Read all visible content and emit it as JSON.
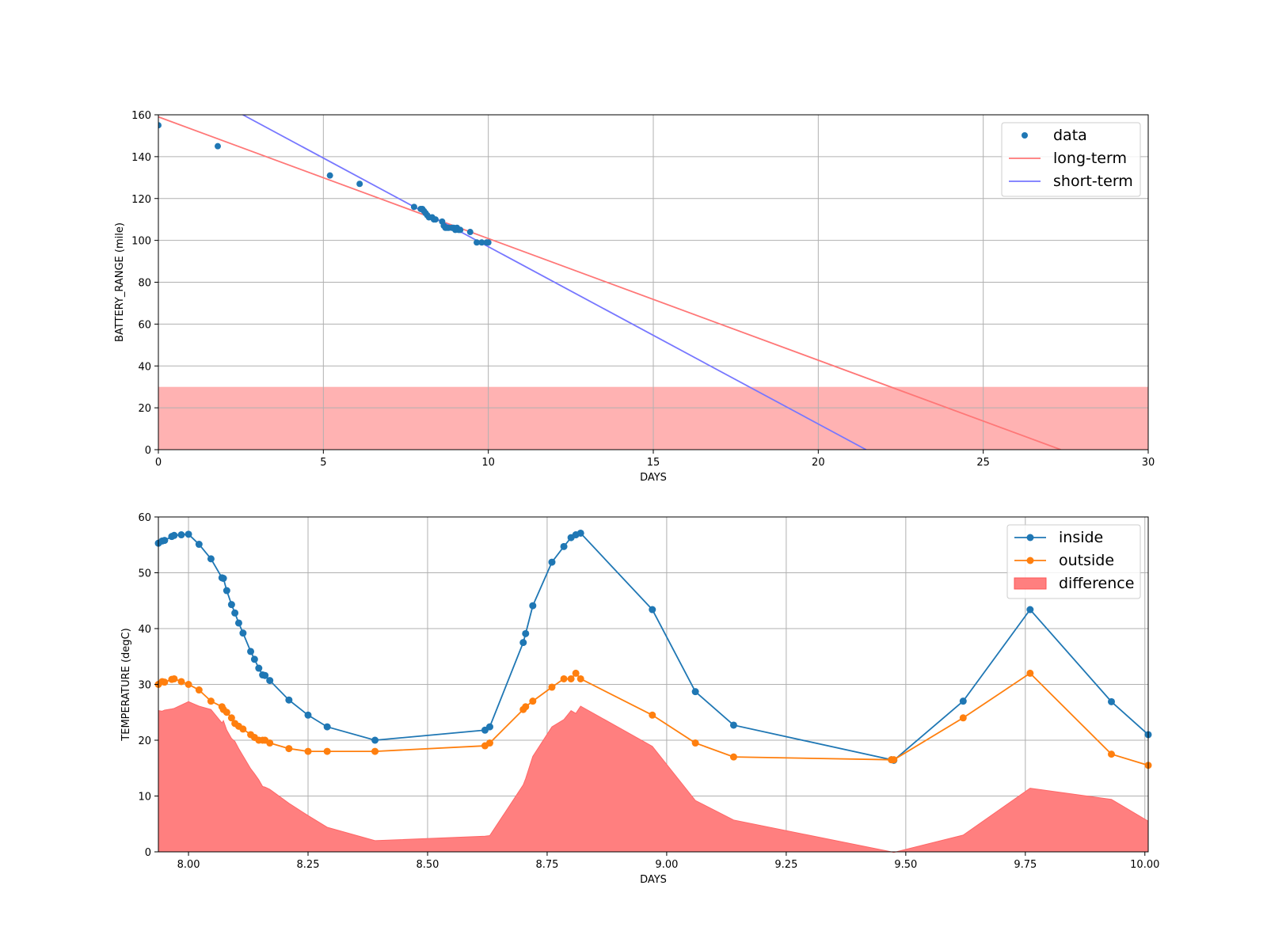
{
  "chart_data": [
    {
      "type": "scatter",
      "xlabel": "DAYS",
      "ylabel": "BATTERY_RANGE (mile)",
      "xlim": [
        0,
        30
      ],
      "ylim": [
        0,
        160
      ],
      "xticks": [
        0,
        5,
        10,
        15,
        20,
        25,
        30
      ],
      "yticks": [
        0,
        20,
        40,
        60,
        80,
        100,
        120,
        140,
        160
      ],
      "grid": true,
      "legend_position": "top-right",
      "shaded_band": {
        "y0": 0,
        "y1": 30,
        "color": "#ff0000",
        "opacity": 0.3
      },
      "colors": {
        "data": "#1f77b4",
        "long_term": "#ff7777",
        "short_term": "#7777ff"
      },
      "series": [
        {
          "name": "data",
          "kind": "points",
          "x": [
            0.0,
            1.8,
            5.2,
            6.1,
            7.75,
            7.95,
            8.0,
            8.05,
            8.1,
            8.15,
            8.2,
            8.3,
            8.35,
            8.4,
            8.6,
            8.65,
            8.7,
            8.75,
            8.8,
            8.9,
            8.95,
            9.0,
            9.05,
            9.1,
            9.15,
            9.45,
            9.65,
            9.8,
            9.95,
            10.0
          ],
          "y": [
            155,
            145,
            131,
            127,
            116,
            115,
            115,
            114,
            113,
            112,
            111,
            111,
            110,
            110,
            109,
            107,
            106,
            106,
            106,
            106,
            106,
            105,
            106,
            105,
            105,
            104,
            99,
            99,
            99,
            99
          ]
        },
        {
          "name": "long-term",
          "kind": "line",
          "x": [
            0,
            27.35
          ],
          "y": [
            159,
            0
          ]
        },
        {
          "name": "short-term",
          "kind": "line",
          "x": [
            2.56,
            21.45
          ],
          "y": [
            160,
            0
          ]
        }
      ]
    },
    {
      "type": "line",
      "xlabel": "DAYS",
      "ylabel": "TEMPERATURE (degC)",
      "xlim": [
        7.937,
        10.007
      ],
      "ylim": [
        0,
        60
      ],
      "xticks": [
        8.0,
        8.25,
        8.5,
        8.75,
        9.0,
        9.25,
        9.5,
        9.75,
        10.0
      ],
      "xtick_labels": [
        "8.00",
        "8.25",
        "8.50",
        "8.75",
        "9.00",
        "9.25",
        "9.50",
        "9.75",
        "10.00"
      ],
      "yticks": [
        0,
        10,
        20,
        30,
        40,
        50,
        60
      ],
      "grid": true,
      "legend_position": "top-right",
      "colors": {
        "inside": "#1f77b4",
        "outside": "#ff7f0e",
        "difference": "#ff7f7f"
      },
      "x": [
        7.937,
        7.945,
        7.95,
        7.965,
        7.97,
        7.985,
        8.0,
        8.022,
        8.047,
        8.07,
        8.073,
        8.08,
        8.09,
        8.097,
        8.105,
        8.114,
        8.13,
        8.138,
        8.147,
        8.155,
        8.16,
        8.17,
        8.21,
        8.25,
        8.29,
        8.39,
        8.62,
        8.63,
        8.7,
        8.705,
        8.72,
        8.76,
        8.785,
        8.8,
        8.81,
        8.82,
        8.97,
        9.06,
        9.14,
        9.47,
        9.475,
        9.62,
        9.76,
        9.93,
        10.007
      ],
      "series": [
        {
          "name": "inside",
          "marker": "o",
          "values": [
            55.3,
            55.7,
            55.8,
            56.5,
            56.7,
            56.8,
            56.9,
            55.1,
            52.5,
            49.1,
            49.0,
            46.8,
            44.3,
            42.8,
            41.0,
            39.2,
            35.9,
            34.5,
            32.9,
            31.7,
            31.6,
            30.7,
            27.2,
            24.5,
            22.4,
            20.0,
            21.8,
            22.4,
            37.5,
            39.1,
            44.1,
            51.9,
            54.7,
            56.3,
            56.8,
            57.1,
            43.4,
            28.7,
            22.7,
            16.5,
            16.4,
            27.0,
            43.4,
            26.9,
            21.0
          ]
        },
        {
          "name": "outside",
          "marker": "o",
          "values": [
            30.0,
            30.5,
            30.4,
            30.9,
            31.0,
            30.5,
            30.0,
            29.0,
            27.0,
            26.0,
            25.5,
            25.0,
            24.0,
            23.0,
            22.5,
            22.0,
            21.0,
            20.5,
            20.0,
            20.0,
            20.0,
            19.5,
            18.5,
            18.0,
            18.0,
            18.0,
            19.0,
            19.5,
            25.5,
            26.0,
            27.0,
            29.5,
            31.0,
            31.0,
            32.0,
            31.0,
            24.5,
            19.5,
            17.0,
            16.5,
            16.5,
            24.0,
            32.0,
            17.5,
            15.5
          ]
        },
        {
          "name": "difference",
          "kind": "fill",
          "definition": "inside - outside"
        }
      ]
    }
  ]
}
